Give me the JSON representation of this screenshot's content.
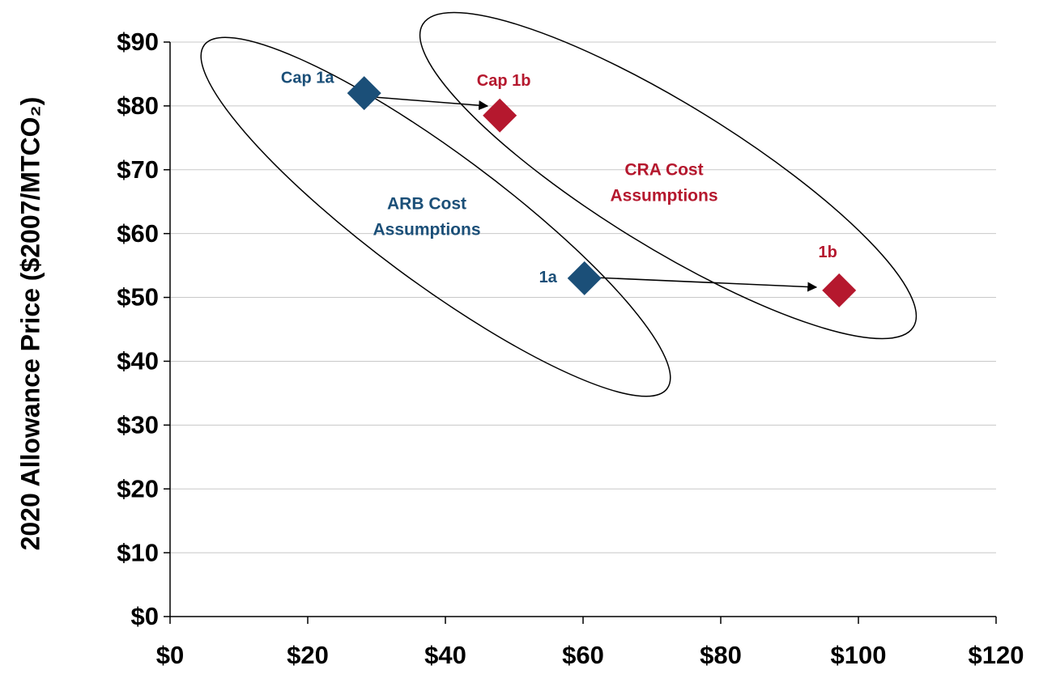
{
  "chart_data": {
    "type": "scatter",
    "y_label": "2020 Allowance Price ($2007/MTCO₂)",
    "xlim": [
      0,
      120
    ],
    "xticks": [
      {
        "value": 0,
        "label": "$0"
      },
      {
        "value": 20,
        "label": "$20"
      },
      {
        "value": 40,
        "label": "$40"
      },
      {
        "value": 60,
        "label": "$60"
      },
      {
        "value": 80,
        "label": "$80"
      },
      {
        "value": 100,
        "label": "$100"
      },
      {
        "value": 120,
        "label": "$120"
      }
    ],
    "ylim": [
      0,
      90
    ],
    "yticks": [
      {
        "value": 0,
        "label": "$0"
      },
      {
        "value": 10,
        "label": "$10"
      },
      {
        "value": 20,
        "label": "$20"
      },
      {
        "value": 30,
        "label": "$30"
      },
      {
        "value": 40,
        "label": "$40"
      },
      {
        "value": 50,
        "label": "$50"
      },
      {
        "value": 60,
        "label": "$60"
      },
      {
        "value": 70,
        "label": "$70"
      },
      {
        "value": 80,
        "label": "$80"
      },
      {
        "value": 90,
        "label": "$90"
      }
    ],
    "grid": true,
    "series": [
      {
        "color": "#1b4f78",
        "labels": [
          "Cap 1a",
          "1a"
        ],
        "x": [
          28.2,
          60.2
        ],
        "values": [
          82,
          53
        ]
      },
      {
        "color": "#b5182e",
        "labels": [
          "Cap 1b",
          "1b"
        ],
        "x": [
          47.9,
          97.2
        ],
        "values": [
          78.5,
          51.1
        ]
      }
    ],
    "annotations": [
      {
        "color": "#1b4f78",
        "lines": [
          "ARB Cost",
          "Assumptions"
        ]
      },
      {
        "color": "#b5182e",
        "lines": [
          "CRA Cost",
          "Assumptions"
        ]
      }
    ]
  }
}
